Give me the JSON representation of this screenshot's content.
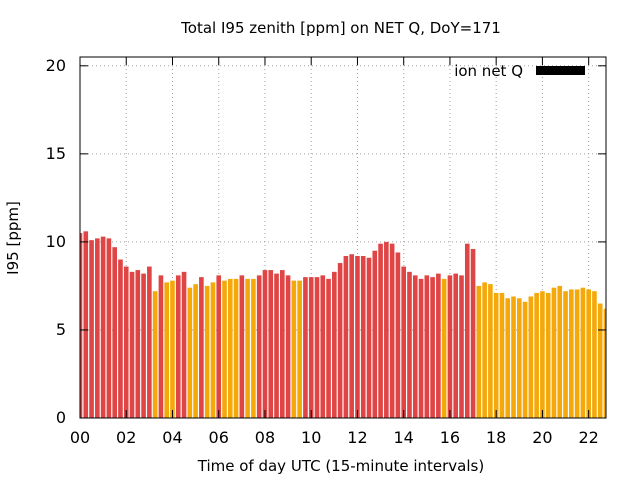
{
  "chart_data": {
    "type": "bar",
    "title": "Total I95 zenith [ppm] on NET Q, DoY=171",
    "xlabel": "Time of day UTC (15-minute intervals)",
    "ylabel": "I95 [ppm]",
    "xlim": [
      0,
      22.75
    ],
    "ylim": [
      0,
      20.5
    ],
    "x_ticks": [
      "00",
      "02",
      "04",
      "06",
      "08",
      "10",
      "12",
      "14",
      "16",
      "18",
      "20",
      "22"
    ],
    "y_ticks": [
      "0",
      "5",
      "10",
      "15",
      "20"
    ],
    "grid": true,
    "legend": {
      "label": "ion net Q",
      "position": "top-right",
      "color": "#000000"
    },
    "colors": {
      "high": "#e04545",
      "low": "#f5a80a"
    },
    "x": [
      0.0,
      0.25,
      0.5,
      0.75,
      1.0,
      1.25,
      1.5,
      1.75,
      2.0,
      2.25,
      2.5,
      2.75,
      3.0,
      3.25,
      3.5,
      3.75,
      4.0,
      4.25,
      4.5,
      4.75,
      5.0,
      5.25,
      5.5,
      5.75,
      6.0,
      6.25,
      6.5,
      6.75,
      7.0,
      7.25,
      7.5,
      7.75,
      8.0,
      8.25,
      8.5,
      8.75,
      9.0,
      9.25,
      9.5,
      9.75,
      10.0,
      10.25,
      10.5,
      10.75,
      11.0,
      11.25,
      11.5,
      11.75,
      12.0,
      12.25,
      12.5,
      12.75,
      13.0,
      13.25,
      13.5,
      13.75,
      14.0,
      14.25,
      14.5,
      14.75,
      15.0,
      15.25,
      15.5,
      15.75,
      16.0,
      16.25,
      16.5,
      16.75,
      17.0,
      17.25,
      17.5,
      17.75,
      18.0,
      18.25,
      18.5,
      18.75,
      19.0,
      19.25,
      19.5,
      19.75,
      20.0,
      20.25,
      20.5,
      20.75,
      21.0,
      21.25,
      21.5,
      21.75,
      22.0,
      22.25,
      22.5,
      22.75
    ],
    "values": [
      10.5,
      10.6,
      10.1,
      10.2,
      10.3,
      10.2,
      9.7,
      9.0,
      8.6,
      8.3,
      8.4,
      8.2,
      8.6,
      7.2,
      8.1,
      7.7,
      7.8,
      8.1,
      8.3,
      7.4,
      7.6,
      8.0,
      7.5,
      7.7,
      8.1,
      7.8,
      7.9,
      7.9,
      8.1,
      7.9,
      7.9,
      8.1,
      8.4,
      8.4,
      8.2,
      8.4,
      8.1,
      7.8,
      7.8,
      8.0,
      8.0,
      8.0,
      8.1,
      7.9,
      8.3,
      8.8,
      9.2,
      9.3,
      9.2,
      9.2,
      9.1,
      9.5,
      9.9,
      10.0,
      9.9,
      9.4,
      8.6,
      8.3,
      8.1,
      7.9,
      8.1,
      8.0,
      8.2,
      7.9,
      8.1,
      8.2,
      8.1,
      9.9,
      9.6,
      7.5,
      7.7,
      7.6,
      7.1,
      7.1,
      6.8,
      6.9,
      6.8,
      6.6,
      6.9,
      7.1,
      7.2,
      7.1,
      7.4,
      7.5,
      7.2,
      7.3,
      7.3,
      7.4,
      7.3,
      7.2,
      6.5,
      6.2
    ],
    "levels": [
      "high",
      "high",
      "high",
      "high",
      "high",
      "high",
      "high",
      "high",
      "high",
      "high",
      "high",
      "high",
      "high",
      "low",
      "high",
      "low",
      "low",
      "high",
      "high",
      "low",
      "low",
      "high",
      "low",
      "low",
      "high",
      "low",
      "low",
      "low",
      "high",
      "low",
      "low",
      "high",
      "high",
      "high",
      "high",
      "high",
      "high",
      "low",
      "low",
      "high",
      "high",
      "high",
      "high",
      "high",
      "high",
      "high",
      "high",
      "high",
      "high",
      "high",
      "high",
      "high",
      "high",
      "high",
      "high",
      "high",
      "high",
      "high",
      "high",
      "high",
      "high",
      "high",
      "high",
      "low",
      "high",
      "high",
      "high",
      "high",
      "high",
      "low",
      "low",
      "low",
      "low",
      "low",
      "low",
      "low",
      "low",
      "low",
      "low",
      "low",
      "low",
      "low",
      "low",
      "low",
      "low",
      "low",
      "low",
      "low",
      "low",
      "low",
      "low",
      "low"
    ]
  }
}
